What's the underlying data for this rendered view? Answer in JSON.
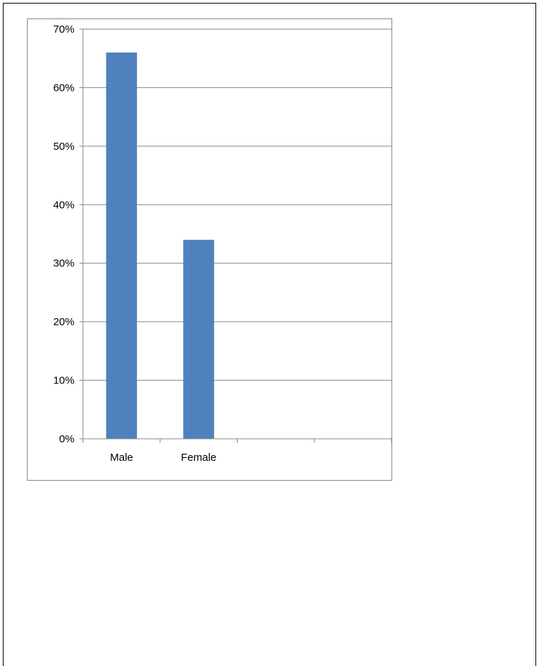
{
  "chart_data": {
    "type": "bar",
    "title": "",
    "xlabel": "",
    "ylabel": "",
    "categories": [
      "Male",
      "Female",
      "",
      ""
    ],
    "values": [
      0.66,
      0.34,
      null,
      null
    ],
    "ylim": [
      0,
      0.7
    ],
    "yticks": [
      "0%",
      "10%",
      "20%",
      "30%",
      "40%",
      "50%",
      "60%",
      "70%"
    ],
    "grid": true,
    "legend": "none",
    "bar_color": "#4F81BD",
    "gridline_color": "#868686"
  }
}
